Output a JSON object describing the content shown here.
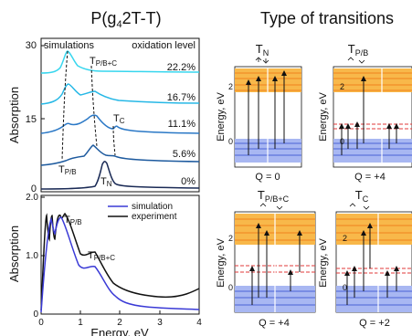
{
  "figure": {
    "left_title": {
      "main": "P(g",
      "sub": "4",
      "rest": "2T-T)"
    },
    "right_title": "Type of transitions"
  },
  "colors": {
    "cyan_light": "#37d6ee",
    "cyan": "#27b8e6",
    "blue_mid": "#2a78c6",
    "blue_dark": "#1d5a9e",
    "navy": "#1a2a55",
    "black": "#111111",
    "orange_band": "#f8b84a",
    "orange_line": "#f0821e",
    "blue_band": "#a8b7f2",
    "blue_line": "#4a63d6",
    "red_dash": "#e23a3a",
    "sim": "#3a3ad6",
    "exp": "#111111"
  },
  "top_panel": {
    "ylabel": "Absorption",
    "legend_left": "simulations",
    "legend_right": "oxidation level",
    "yticks": [
      "30",
      "15",
      "0"
    ],
    "levels": [
      "22.2%",
      "16.7%",
      "11.1%",
      "5.6%",
      "0%"
    ],
    "peak_labels": {
      "pbc_main": "T",
      "pbc_sub": "P/B+C",
      "c_main": "T",
      "c_sub": "C",
      "pb_main": "T",
      "pb_sub": "P/B",
      "n_main": "T",
      "n_sub": "N"
    }
  },
  "bottom_panel": {
    "ylabel": "Absorption",
    "xlabel": "Energy, eV",
    "yticks": [
      "2.0",
      "1.0",
      "0"
    ],
    "xticks": [
      "0",
      "1",
      "2",
      "3",
      "4"
    ],
    "legend": [
      {
        "label": "simulation",
        "color": "#3a3ad6"
      },
      {
        "label": "experiment",
        "color": "#111111"
      }
    ],
    "peak_labels": {
      "pb_main": "T",
      "pb_sub": "P/B",
      "pbc_main": "T",
      "pbc_sub": "P/B+C"
    }
  },
  "diagrams": [
    {
      "title_main": "T",
      "title_sub": "N",
      "ylabel": "Energy, eV",
      "yticks": [
        "2",
        "0"
      ],
      "q": "Q = 0"
    },
    {
      "title_main": "T",
      "title_sub": "P/B",
      "ylabel": "Energy, eV",
      "yticks": [
        "2",
        "0"
      ],
      "q": "Q = +4"
    },
    {
      "title_main": "T",
      "title_sub": "P/B+C",
      "ylabel": "Energy, eV",
      "yticks": [
        "2",
        "0"
      ],
      "q": "Q = +4"
    },
    {
      "title_main": "T",
      "title_sub": "C",
      "ylabel": "Energy, eV",
      "yticks": [
        "2",
        "0"
      ],
      "q": "Q = +2"
    }
  ]
}
